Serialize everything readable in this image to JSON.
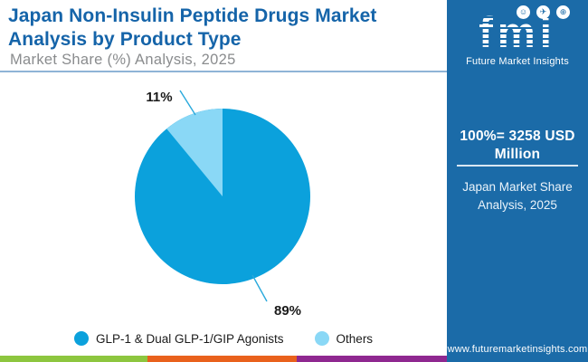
{
  "header": {
    "title_line1": "Japan Non-Insulin Peptide Drugs Market",
    "title_line2": "Analysis by Product Type",
    "subtitle": "Market Share (%) Analysis, 2025"
  },
  "chart_data": {
    "type": "pie",
    "title": "Japan Non-Insulin Peptide Drugs Market Analysis by Product Type",
    "subtitle": "Market Share (%) Analysis, 2025",
    "categories": [
      "GLP-1 & Dual GLP-1/GIP Agonists",
      "Others"
    ],
    "values": [
      89,
      11
    ],
    "unit": "%",
    "labels": [
      "89%",
      "11%"
    ],
    "colors": [
      "#0BA1DC",
      "#8AD8F6"
    ],
    "total_note": "100% = 3258 USD Million",
    "legend_position": "bottom"
  },
  "sidebar": {
    "background": "#1B6BA8",
    "logo": {
      "wordmark": "fmi",
      "tagline": "Future Market Insights",
      "icons": [
        "people-icon",
        "plane-icon",
        "globe-icon"
      ],
      "icon_glyphs": [
        "☺",
        "✈",
        "⊕"
      ]
    },
    "stat": {
      "line1": "100%=  3258 USD",
      "line2": "Million"
    },
    "caption": {
      "line1": "Japan Market Share",
      "line2": "Analysis, 2025"
    },
    "website": "www.futuremarketinsights.com"
  },
  "footer_bar": {
    "colors": [
      "#8DC63F",
      "#E9611C",
      "#8F2890"
    ]
  }
}
